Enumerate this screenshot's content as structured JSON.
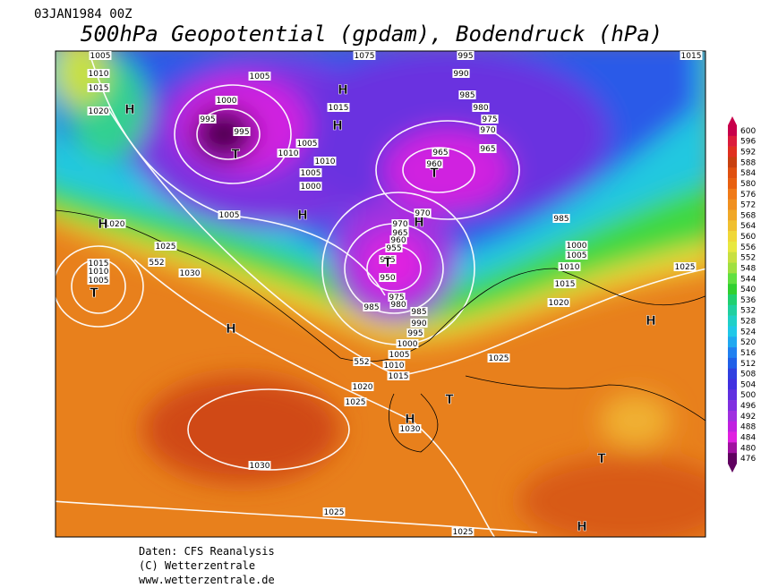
{
  "header": {
    "date": "03JAN1984 00Z",
    "title": "500hPa Geopotential (gpdam), Bodendruck (hPa)"
  },
  "legend": {
    "levels": [
      600,
      596,
      592,
      588,
      584,
      580,
      576,
      572,
      568,
      564,
      560,
      556,
      552,
      548,
      544,
      540,
      536,
      532,
      528,
      524,
      520,
      516,
      512,
      508,
      504,
      500,
      496,
      492,
      488,
      484,
      480,
      476
    ],
    "colors": [
      "#c8004b",
      "#dc1c3c",
      "#e03020",
      "#c84010",
      "#e05010",
      "#e86010",
      "#f07a18",
      "#f09020",
      "#f0a828",
      "#f0c030",
      "#f0d838",
      "#e8e840",
      "#c8e040",
      "#a0e040",
      "#60e040",
      "#30d030",
      "#20d070",
      "#20d0a0",
      "#20d0c8",
      "#20c8e8",
      "#20a8f0",
      "#2080f0",
      "#2060e8",
      "#3040e0",
      "#4030e0",
      "#6030e0",
      "#8030e0",
      "#a030e0",
      "#c020e0",
      "#e020e0",
      "#a010a0",
      "#600060"
    ]
  },
  "map": {
    "pressure_labels": [
      "1005",
      "1010",
      "1015",
      "1020",
      "1005",
      "1000",
      "995",
      "995",
      "1015",
      "1005",
      "1010",
      "1010",
      "1005",
      "1000",
      "1005",
      "1075",
      "995",
      "990",
      "985",
      "980",
      "975",
      "970",
      "965",
      "960",
      "965",
      "970",
      "970",
      "965",
      "960",
      "955",
      "975",
      "950",
      "975",
      "980",
      "985",
      "985",
      "990",
      "995",
      "1000",
      "1005",
      "1010",
      "1015",
      "1020",
      "1025",
      "1030",
      "1030",
      "1025",
      "1025",
      "1025",
      "1020",
      "1015",
      "1010",
      "1005",
      "1000",
      "985",
      "1025",
      "1015",
      "1020",
      "1015",
      "1010",
      "1005",
      "1025",
      "1030",
      "552",
      "552"
    ],
    "centers": [
      "H",
      "T",
      "H",
      "H",
      "H",
      "T",
      "H",
      "T",
      "H",
      "T",
      "H",
      "T",
      "H",
      "H",
      "T",
      "H"
    ]
  },
  "footer": {
    "source": "Daten: CFS Reanalysis",
    "copyright": "(C) Wetterzentrale",
    "url": "www.wetterzentrale.de"
  }
}
